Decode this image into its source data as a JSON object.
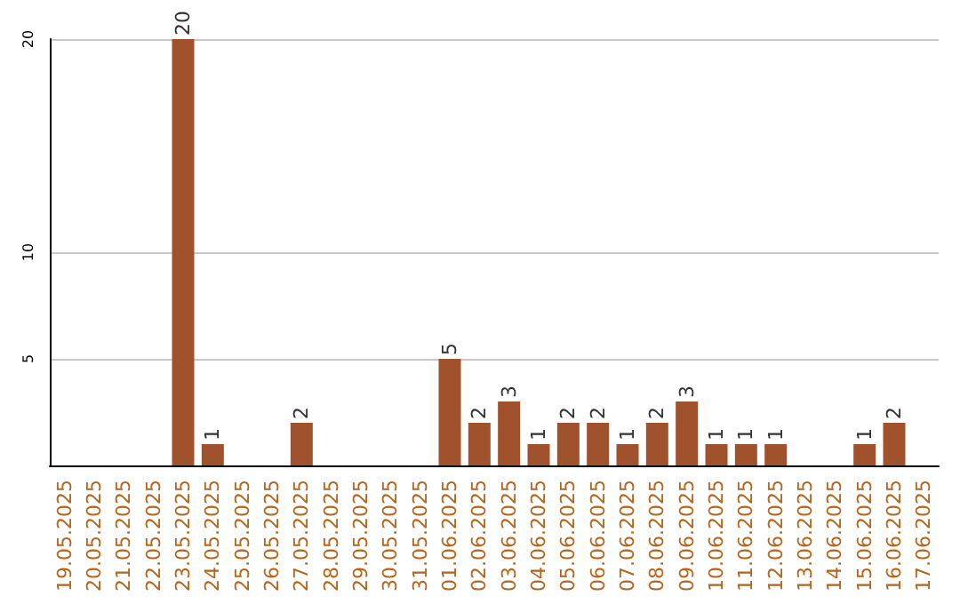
{
  "chart_data": {
    "type": "bar",
    "categories": [
      "19.05.2025",
      "20.05.2025",
      "21.05.2025",
      "22.05.2025",
      "23.05.2025",
      "24.05.2025",
      "25.05.2025",
      "26.05.2025",
      "27.05.2025",
      "28.05.2025",
      "29.05.2025",
      "30.05.2025",
      "31.05.2025",
      "01.06.2025",
      "02.06.2025",
      "03.06.2025",
      "04.06.2025",
      "05.06.2025",
      "06.06.2025",
      "07.06.2025",
      "08.06.2025",
      "09.06.2025",
      "10.06.2025",
      "11.06.2025",
      "12.06.2025",
      "13.06.2025",
      "14.06.2025",
      "15.06.2025",
      "16.06.2025",
      "17.06.2025"
    ],
    "values": [
      0,
      0,
      0,
      0,
      20,
      1,
      0,
      0,
      2,
      0,
      0,
      0,
      0,
      5,
      2,
      3,
      1,
      2,
      2,
      1,
      2,
      3,
      1,
      1,
      1,
      0,
      0,
      1,
      2,
      0
    ],
    "value_labels": [
      null,
      null,
      null,
      null,
      "20",
      "1",
      null,
      null,
      "2",
      null,
      null,
      null,
      null,
      "5",
      "2",
      "3",
      "1",
      "2",
      "2",
      "1",
      "2",
      "3",
      "1",
      "1",
      "1",
      null,
      null,
      "1",
      "2",
      null
    ],
    "color": "#a0522d",
    "ylim": [
      0,
      20
    ],
    "yticks": [
      5,
      10,
      20
    ],
    "grid": "y"
  }
}
